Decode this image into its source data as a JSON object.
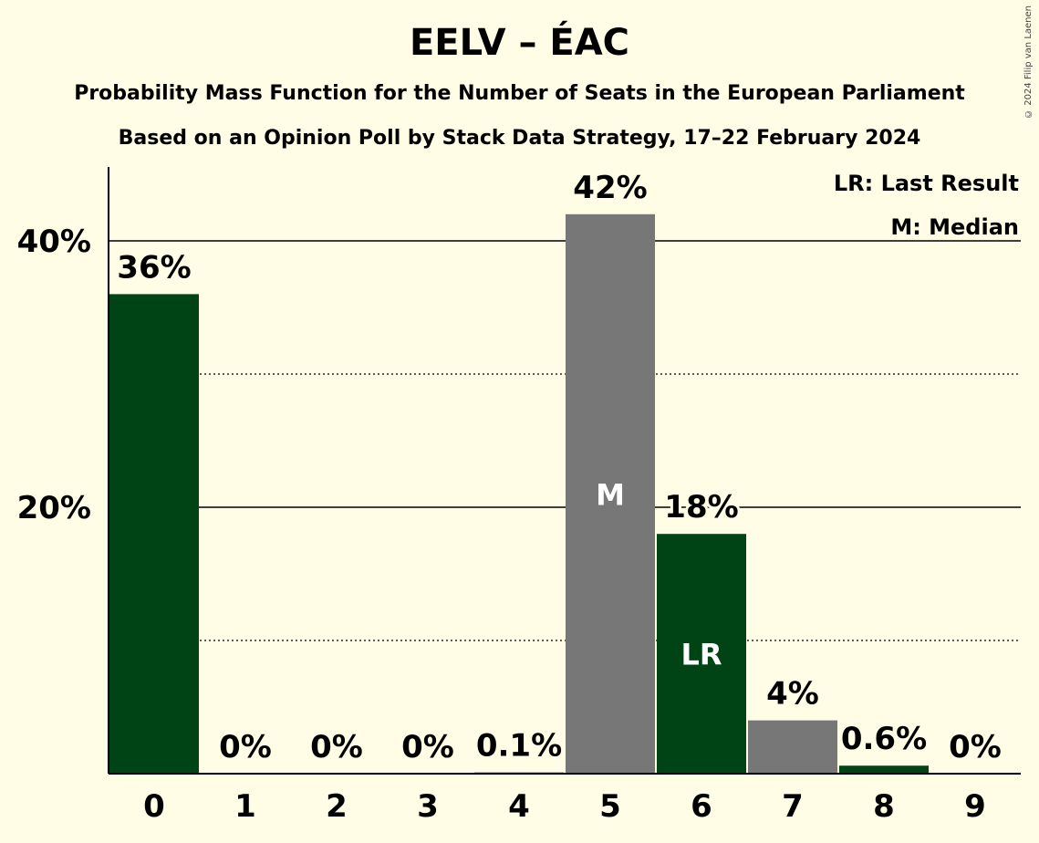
{
  "title": "EELV – ÉAC",
  "subtitle": "Probability Mass Function for the Number of Seats in the European Parliament",
  "subtitle2": "Based on an Opinion Poll by Stack Data Strategy, 17–22 February 2024",
  "copyright": "© 2024 Filip van Laenen",
  "colors": {
    "background": "#fffde6",
    "party": "#004415",
    "grey": "#777777"
  },
  "chart_data": {
    "type": "bar",
    "categories": [
      "0",
      "1",
      "2",
      "3",
      "4",
      "5",
      "6",
      "7",
      "8",
      "9"
    ],
    "values": [
      36,
      0,
      0,
      0,
      0.1,
      42,
      18,
      4,
      0.6,
      0
    ],
    "data_labels": [
      "36%",
      "0%",
      "0%",
      "0%",
      "0.1%",
      "42%",
      "18%",
      "4%",
      "0.6%",
      "0%"
    ],
    "bar_colors": [
      "#004415",
      "#004415",
      "#004415",
      "#004415",
      "#777777",
      "#777777",
      "#004415",
      "#777777",
      "#004415",
      "#004415"
    ],
    "bar_marks": [
      "",
      "",
      "",
      "",
      "",
      "M",
      "LR",
      "",
      "",
      ""
    ],
    "ylim": [
      0,
      46
    ],
    "y_ticks": [
      {
        "value": 20,
        "label": "20%"
      },
      {
        "value": 40,
        "label": "40%"
      }
    ],
    "minor_gridlines": [
      10,
      30
    ],
    "legend": [
      "LR: Last Result",
      "M: Median"
    ],
    "legend_position": "top-right"
  }
}
